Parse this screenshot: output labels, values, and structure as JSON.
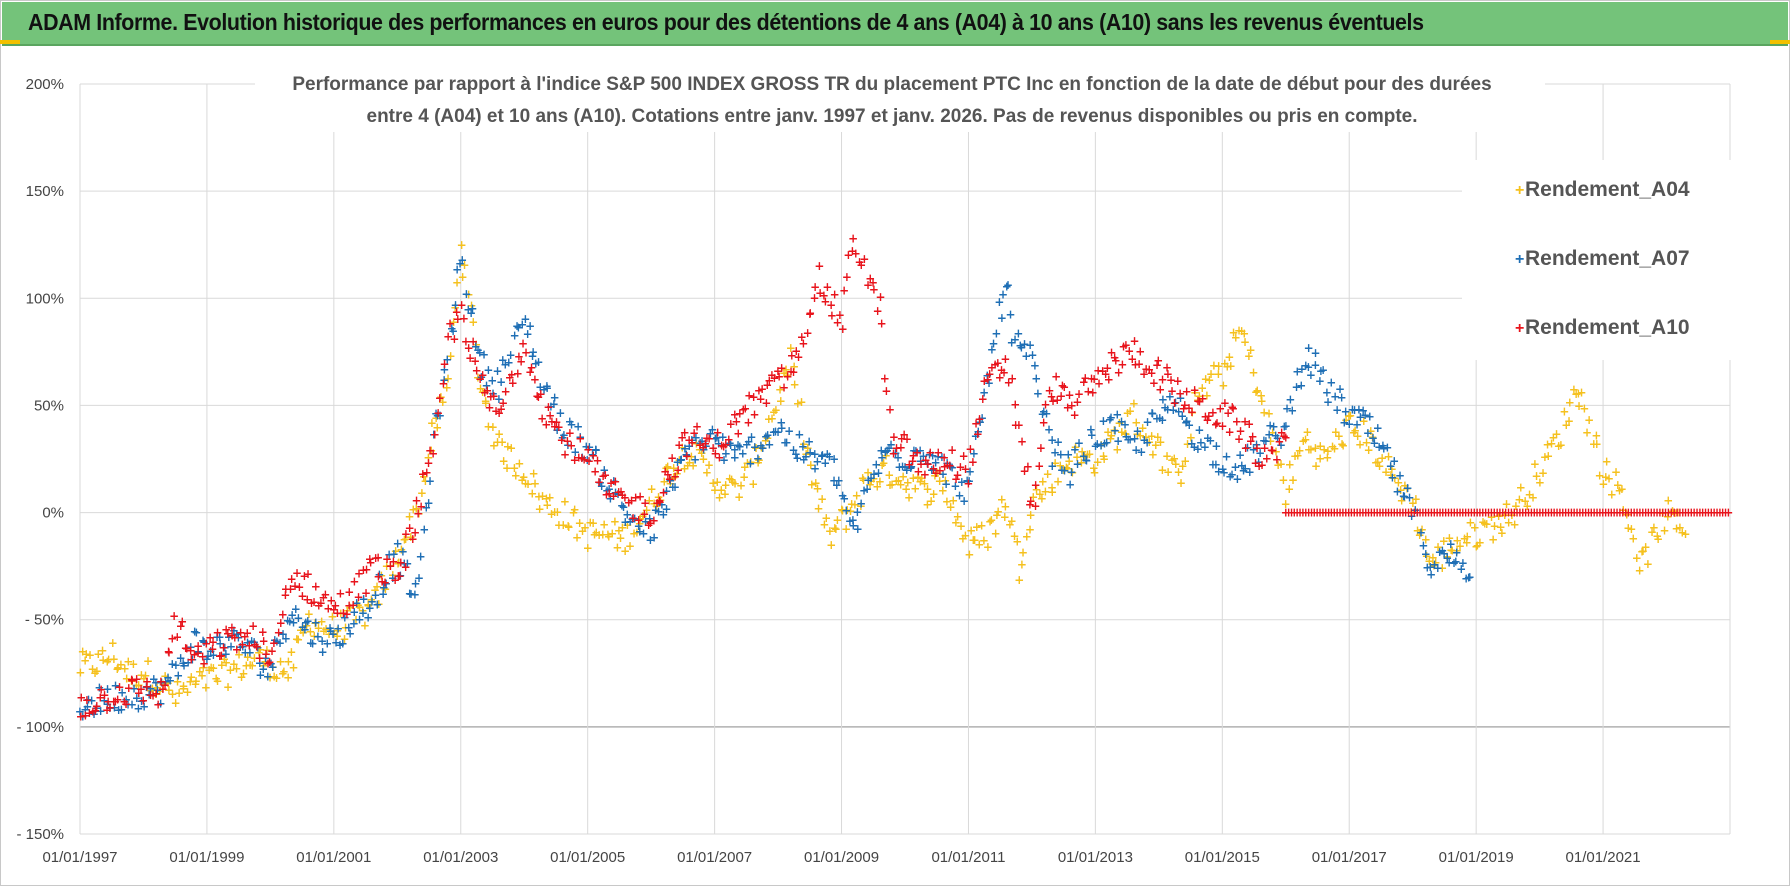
{
  "header": {
    "title": "ADAM Informe. Evolution historique des performances en euros pour des détentions de 4 ans (A04) à 10 ans (A10) sans les revenus éventuels"
  },
  "colors": {
    "banner": "#74c37a",
    "A04": "#f5c11f",
    "A07": "#1f6fb5",
    "A10": "#e8141c",
    "grid": "#d9d9d9"
  },
  "chart_data": {
    "type": "scatter",
    "title": "Performance par rapport à l'indice S&P 500 INDEX GROSS TR  du placement PTC Inc en fonction de la date de début pour des durées",
    "title_line2": "entre 4 (A04) et 10 ans (A10).  Cotations entre janv. 1997 et janv. 2026. Pas de revenus disponibles ou pris en compte.",
    "xlabel": "",
    "ylabel": "",
    "xlim": [
      1997.0,
      2023.0
    ],
    "ylim": [
      -150,
      200
    ],
    "y_ticks": [
      200,
      150,
      100,
      50,
      0,
      -50,
      -100,
      -150
    ],
    "y_tick_labels": [
      "200%",
      "150%",
      "100%",
      "50%",
      "0%",
      "- 50%",
      "- 100%",
      "- 150%"
    ],
    "x_ticks": [
      1997,
      1999,
      2001,
      2003,
      2005,
      2007,
      2009,
      2011,
      2013,
      2015,
      2017,
      2019,
      2021
    ],
    "x_tick_labels": [
      "01/01/1997",
      "01/01/1999",
      "01/01/2001",
      "01/01/2003",
      "01/01/2005",
      "01/01/2007",
      "01/01/2009",
      "01/01/2011",
      "01/01/2013",
      "01/01/2015",
      "01/01/2017",
      "01/01/2019",
      "01/01/2021"
    ],
    "legend_position": "right",
    "series": [
      {
        "name": "Rendement_A04",
        "color": "#f5c11f",
        "x": [
          1997.0,
          1997.3,
          1997.5,
          1997.8,
          1998.0,
          1998.3,
          1998.5,
          1998.8,
          1999.0,
          1999.3,
          1999.5,
          1999.8,
          2000.0,
          2000.3,
          2000.6,
          2001.0,
          2001.3,
          2001.6,
          2002.0,
          2002.3,
          2002.6,
          2002.8,
          2003.0,
          2003.3,
          2003.6,
          2004.0,
          2004.3,
          2004.6,
          2005.0,
          2005.3,
          2005.6,
          2006.0,
          2006.3,
          2006.6,
          2007.0,
          2007.3,
          2007.6,
          2007.9,
          2008.2,
          2008.5,
          2008.8,
          2009.1,
          2009.4,
          2009.7,
          2010.0,
          2010.3,
          2010.6,
          2011.0,
          2011.3,
          2011.6,
          2011.8,
          2012.0,
          2012.3,
          2012.6,
          2013.0,
          2013.3,
          2013.6,
          2014.0,
          2014.3,
          2014.6,
          2015.0,
          2015.3,
          2015.6,
          2016.0,
          2016.3,
          2016.6,
          2017.0,
          2017.3,
          2017.6,
          2018.0,
          2018.3,
          2018.6,
          2019.0,
          2019.3,
          2019.6,
          2020.0,
          2020.3,
          2020.6,
          2021.0,
          2021.3,
          2021.6,
          2022.0,
          2022.3
        ],
        "values": [
          -72,
          -70,
          -66,
          -76,
          -74,
          -80,
          -86,
          -80,
          -78,
          -75,
          -72,
          -68,
          -70,
          -75,
          -50,
          -55,
          -50,
          -45,
          -20,
          0,
          40,
          60,
          125,
          60,
          30,
          20,
          5,
          0,
          -10,
          -10,
          -12,
          5,
          20,
          30,
          15,
          10,
          20,
          45,
          70,
          20,
          -12,
          0,
          15,
          20,
          15,
          10,
          15,
          -15,
          -10,
          5,
          -25,
          5,
          15,
          25,
          25,
          35,
          45,
          30,
          15,
          55,
          65,
          85,
          55,
          10,
          35,
          25,
          40,
          35,
          20,
          5,
          -25,
          -15,
          -10,
          -5,
          0,
          20,
          35,
          60,
          20,
          10,
          -25,
          0,
          -10
        ]
      },
      {
        "name": "Rendement_A07",
        "color": "#1f6fb5",
        "x": [
          1997.0,
          1997.3,
          1997.6,
          1998.0,
          1998.3,
          1998.5,
          1998.8,
          1999.0,
          1999.3,
          1999.6,
          1999.9,
          2000.0,
          2000.3,
          2000.6,
          2001.0,
          2001.3,
          2001.6,
          2002.0,
          2002.3,
          2002.6,
          2002.8,
          2003.0,
          2003.3,
          2003.6,
          2004.0,
          2004.3,
          2004.6,
          2005.0,
          2005.3,
          2005.6,
          2006.0,
          2006.3,
          2006.6,
          2007.0,
          2007.3,
          2007.6,
          2008.0,
          2008.3,
          2008.6,
          2008.9,
          2009.2,
          2009.5,
          2009.8,
          2010.0,
          2010.3,
          2010.6,
          2011.0,
          2011.3,
          2011.6,
          2011.7,
          2012.0,
          2012.3,
          2012.6,
          2013.0,
          2013.3,
          2013.6,
          2014.0,
          2014.3,
          2014.6,
          2015.0,
          2015.3,
          2015.6,
          2016.0,
          2016.3,
          2016.6,
          2017.0,
          2017.3,
          2017.6,
          2018.0,
          2018.3,
          2018.6,
          2018.9
        ],
        "values": [
          -90,
          -88,
          -86,
          -84,
          -82,
          -75,
          -60,
          -65,
          -60,
          -62,
          -70,
          -72,
          -45,
          -55,
          -60,
          -50,
          -40,
          -20,
          -40,
          40,
          70,
          120,
          70,
          60,
          90,
          60,
          40,
          30,
          15,
          0,
          -10,
          10,
          30,
          35,
          25,
          30,
          40,
          30,
          25,
          20,
          -10,
          20,
          30,
          25,
          30,
          20,
          10,
          60,
          110,
          80,
          70,
          30,
          20,
          35,
          40,
          30,
          45,
          50,
          35,
          25,
          20,
          30,
          40,
          75,
          60,
          45,
          40,
          25,
          0,
          -25,
          -20,
          -30
        ]
      },
      {
        "name": "Rendement_A10",
        "color": "#e8141c",
        "x": [
          1997.0,
          1997.3,
          1997.6,
          1998.0,
          1998.3,
          1998.5,
          1998.8,
          1999.0,
          1999.3,
          1999.6,
          1999.9,
          2000.0,
          2000.3,
          2000.6,
          2001.0,
          2001.3,
          2001.6,
          2002.0,
          2002.3,
          2002.6,
          2002.8,
          2003.0,
          2003.3,
          2003.6,
          2004.0,
          2004.3,
          2004.6,
          2005.0,
          2005.3,
          2005.6,
          2006.0,
          2006.3,
          2006.6,
          2007.0,
          2007.3,
          2007.6,
          2008.0,
          2008.3,
          2008.6,
          2008.9,
          2009.0,
          2009.2,
          2009.4,
          2009.6,
          2009.8,
          2010.0,
          2010.3,
          2010.6,
          2011.0,
          2011.3,
          2011.6,
          2011.8,
          2012.0,
          2012.3,
          2012.6,
          2013.0,
          2013.3,
          2013.6,
          2014.0,
          2014.3,
          2014.6,
          2015.0,
          2015.3,
          2015.6,
          2016.0
        ],
        "values": [
          -90,
          -87,
          -84,
          -83,
          -84,
          -50,
          -70,
          -65,
          -60,
          -58,
          -62,
          -75,
          -30,
          -35,
          -45,
          -40,
          -25,
          -30,
          0,
          30,
          80,
          95,
          60,
          45,
          80,
          50,
          35,
          25,
          10,
          5,
          0,
          20,
          35,
          30,
          40,
          50,
          60,
          70,
          110,
          95,
          90,
          130,
          110,
          95,
          30,
          30,
          20,
          25,
          20,
          60,
          70,
          40,
          0,
          60,
          50,
          60,
          70,
          75,
          65,
          55,
          50,
          45,
          40,
          25,
          35
        ]
      },
      {
        "name": "Rendement_A10 (zero segment)",
        "color": "#e8141c",
        "x_range": [
          2016.0,
          2023.0
        ],
        "value": 0
      }
    ]
  },
  "legend": {
    "items": [
      "Rendement_A04",
      "Rendement_A07",
      "Rendement_A10"
    ]
  }
}
